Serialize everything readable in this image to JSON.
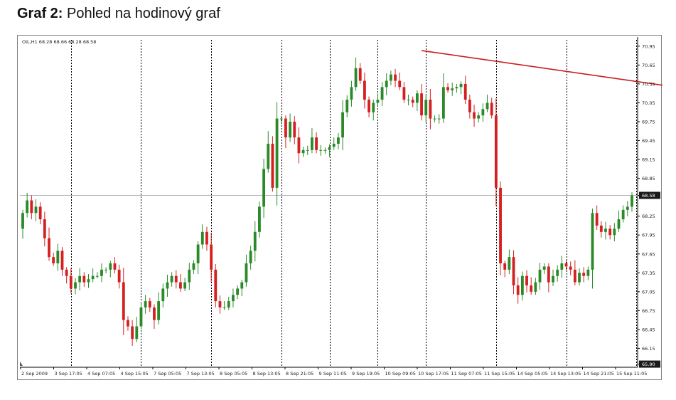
{
  "caption": {
    "bold": "Graf 2:",
    "text": "Pohled na hodinový graf"
  },
  "chart_data": {
    "type": "candlestick",
    "header": "OIL,H1  68.28 68.66 68.28 68.58",
    "y_axis": {
      "range": [
        65.85,
        71.05
      ],
      "tick_labels": [
        "70.95",
        "70.65",
        "70.35",
        "70.05",
        "69.75",
        "69.45",
        "69.15",
        "68.85",
        "68.58",
        "68.25",
        "67.95",
        "67.65",
        "67.35",
        "67.05",
        "66.75",
        "66.45",
        "66.15",
        "65.90"
      ],
      "tick_values": [
        70.95,
        70.65,
        70.35,
        70.05,
        69.75,
        69.45,
        69.15,
        68.85,
        68.58,
        68.25,
        67.95,
        67.65,
        67.35,
        67.05,
        66.75,
        66.45,
        66.15,
        65.9
      ]
    },
    "x_axis": {
      "tick_labels": [
        "2 Sep 2009",
        "3 Sep 17:05",
        "4 Sep 07:05",
        "4 Sep 15:05",
        "7 Sep 05:05",
        "7 Sep 13:05",
        "8 Sep 05:05",
        "8 Sep 13:05",
        "8 Sep 21:05",
        "9 Sep 11:05",
        "9 Sep 19:05",
        "10 Sep 09:05",
        "10 Sep 17:05",
        "11 Sep 07:05",
        "11 Sep 15:05",
        "14 Sep 05:05",
        "14 Sep 13:05",
        "14 Sep 21:05",
        "15 Sep 11:05"
      ]
    },
    "current_price": 68.58,
    "bottom_marker": 65.9,
    "colors": {
      "up": "#2a8a2a",
      "down": "#d42020",
      "trendline": "#c81e1e",
      "grid": "#000000",
      "price_line": "#b4b4b4",
      "tag_bg": "#1a1a1a"
    },
    "trendline": {
      "from": {
        "index": 91,
        "price": 70.88
      },
      "to": {
        "index": 176,
        "price": 70.02
      }
    },
    "candles": []
  }
}
